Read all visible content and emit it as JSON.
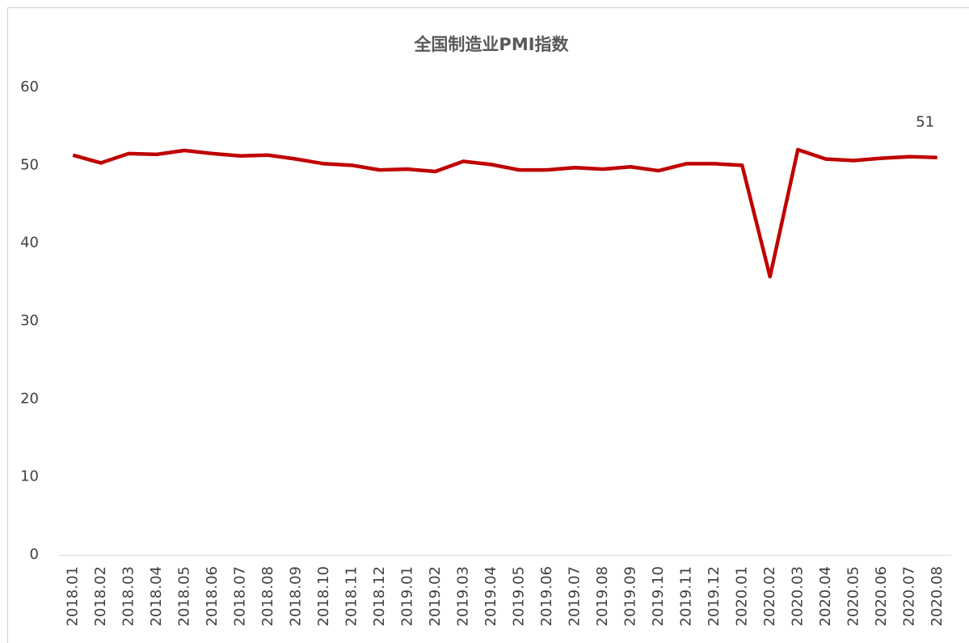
{
  "chart_data": {
    "type": "line",
    "title": "全国制造业PMI指数",
    "categories": [
      "2018.01",
      "2018.02",
      "2018.03",
      "2018.04",
      "2018.05",
      "2018.06",
      "2018.07",
      "2018.08",
      "2018.09",
      "2018.10",
      "2018.11",
      "2018.12",
      "2019.01",
      "2019.02",
      "2019.03",
      "2019.04",
      "2019.05",
      "2019.06",
      "2019.07",
      "2019.08",
      "2019.09",
      "2019.10",
      "2019.11",
      "2019.12",
      "2020.01",
      "2020.02",
      "2020.03",
      "2020.04",
      "2020.05",
      "2020.06",
      "2020.07",
      "2020.08"
    ],
    "series": [
      {
        "name": "全国制造业PMI指数",
        "color": "#c00000",
        "values": [
          51.3,
          50.3,
          51.5,
          51.4,
          51.9,
          51.5,
          51.2,
          51.3,
          50.8,
          50.2,
          50.0,
          49.4,
          49.5,
          49.2,
          50.5,
          50.1,
          49.4,
          49.4,
          49.7,
          49.5,
          49.8,
          49.3,
          50.2,
          50.2,
          50.0,
          35.7,
          52.0,
          50.8,
          50.6,
          50.9,
          51.1,
          51.0
        ]
      }
    ],
    "ylim": [
      0,
      60
    ],
    "yticks": [
      0,
      10,
      20,
      30,
      40,
      50,
      60
    ],
    "grid": false,
    "labeled_points": [
      31
    ]
  }
}
